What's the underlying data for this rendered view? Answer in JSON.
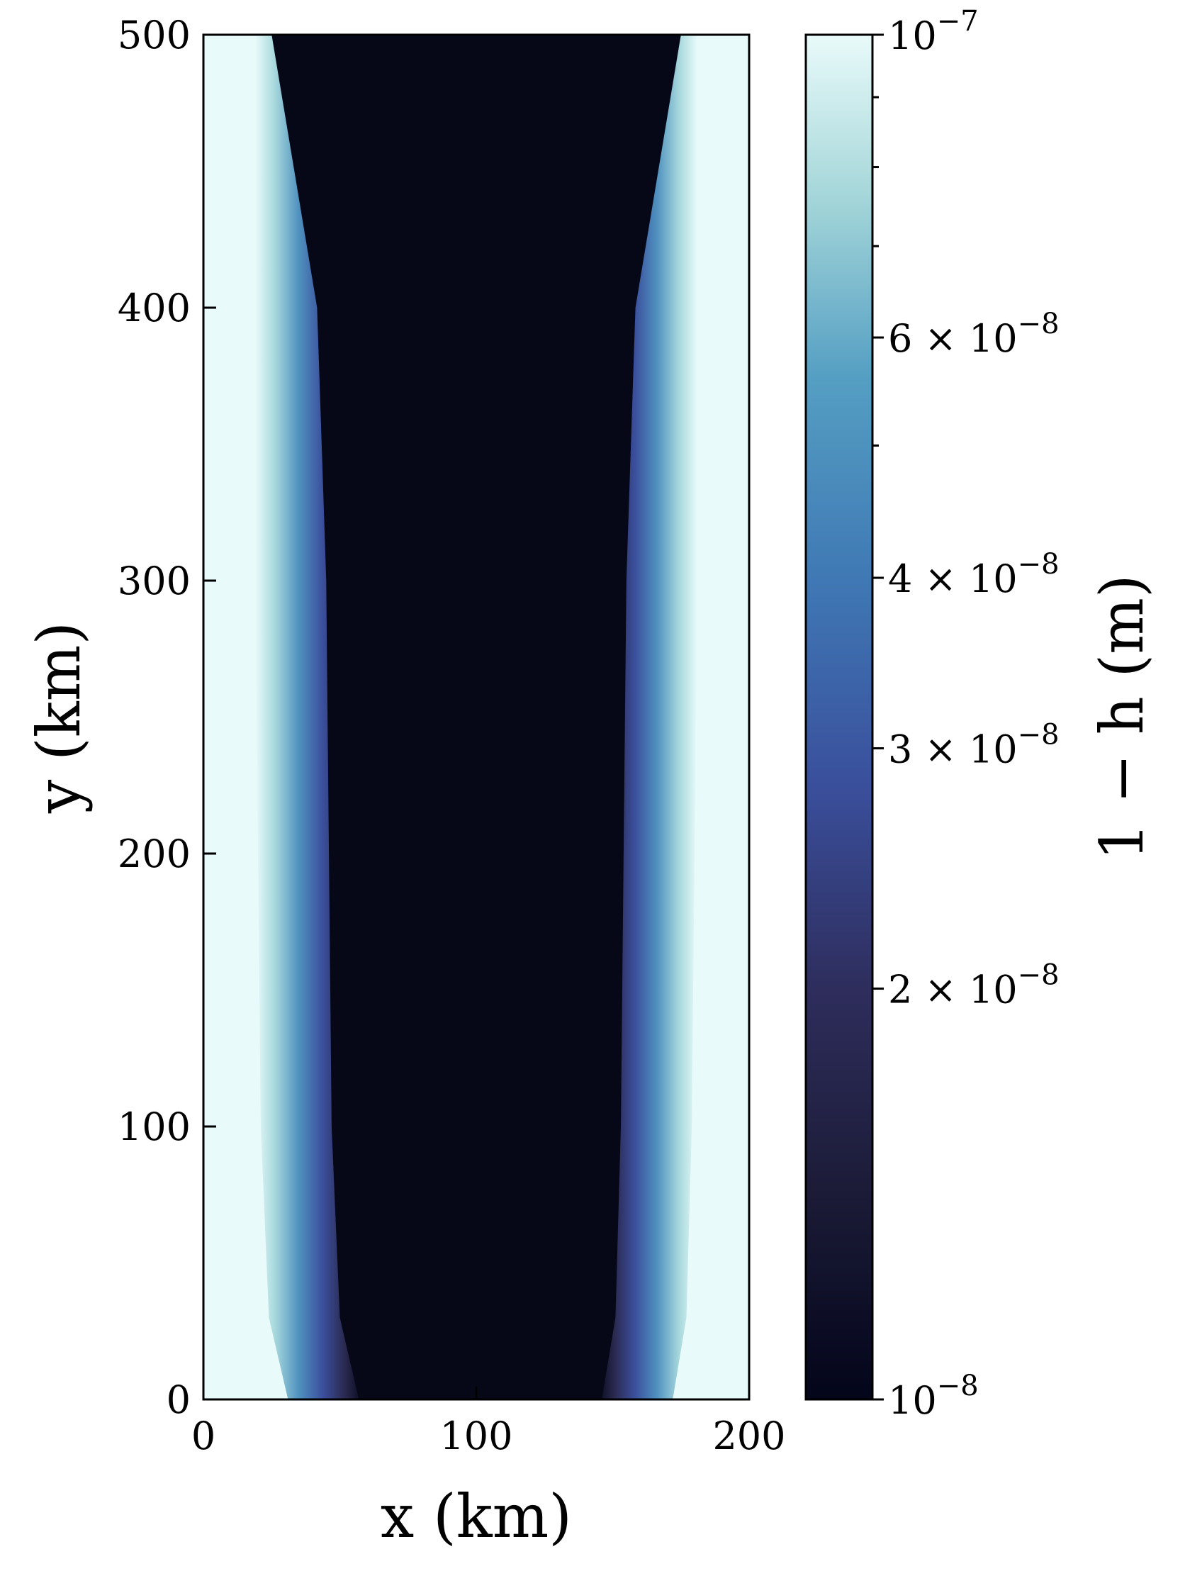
{
  "chart_data": {
    "type": "heatmap",
    "title": "",
    "xlabel": "x (km)",
    "ylabel": "y (km)",
    "xlim": [
      0,
      200
    ],
    "ylim": [
      0,
      500
    ],
    "x_ticks": [
      {
        "value": 0,
        "label": "0"
      },
      {
        "value": 100,
        "label": "100"
      },
      {
        "value": 200,
        "label": "200"
      }
    ],
    "y_ticks": [
      {
        "value": 0,
        "label": "0"
      },
      {
        "value": 100,
        "label": "100"
      },
      {
        "value": 200,
        "label": "200"
      },
      {
        "value": 300,
        "label": "300"
      },
      {
        "value": 400,
        "label": "400"
      },
      {
        "value": 500,
        "label": "500"
      }
    ],
    "grid": false,
    "colorbar": {
      "label": "1 − h (m)",
      "scale": "log",
      "range": [
        1e-08,
        1e-07
      ],
      "colormap": [
        "#03051a",
        "#2b2950",
        "#3b4f9e",
        "#3f80b9",
        "#5aa6c4",
        "#9dd3d8",
        "#e9fafa"
      ],
      "ticks": [
        {
          "value": 1e-07,
          "mantissa": "",
          "exponent": "10",
          "power": "−7"
        },
        {
          "value": 6e-08,
          "mantissa": "6 ×",
          "exponent": "10",
          "power": "−8"
        },
        {
          "value": 4e-08,
          "mantissa": "4 ×",
          "exponent": "10",
          "power": "−8"
        },
        {
          "value": 3e-08,
          "mantissa": "3 ×",
          "exponent": "10",
          "power": "−8"
        },
        {
          "value": 2e-08,
          "mantissa": "2 ×",
          "exponent": "10",
          "power": "−8"
        },
        {
          "value": 1e-08,
          "mantissa": "",
          "exponent": "10",
          "power": "−8"
        }
      ],
      "minor_ticks": [
        9e-08,
        8e-08,
        7e-08,
        5e-08
      ]
    },
    "field": {
      "description_values": {
        "outside_value": 1e-07,
        "core_value": 1e-08
      },
      "core_left_x_km": [
        [
          0,
          33
        ],
        [
          30,
          26
        ],
        [
          100,
          23
        ],
        [
          200,
          22
        ],
        [
          300,
          21
        ],
        [
          400,
          21
        ],
        [
          500,
          21
        ]
      ],
      "core_right_x_km": [
        [
          0,
          170
        ],
        [
          30,
          175
        ],
        [
          100,
          177
        ],
        [
          200,
          178
        ],
        [
          300,
          179
        ],
        [
          400,
          179
        ],
        [
          500,
          179
        ]
      ]
    }
  }
}
